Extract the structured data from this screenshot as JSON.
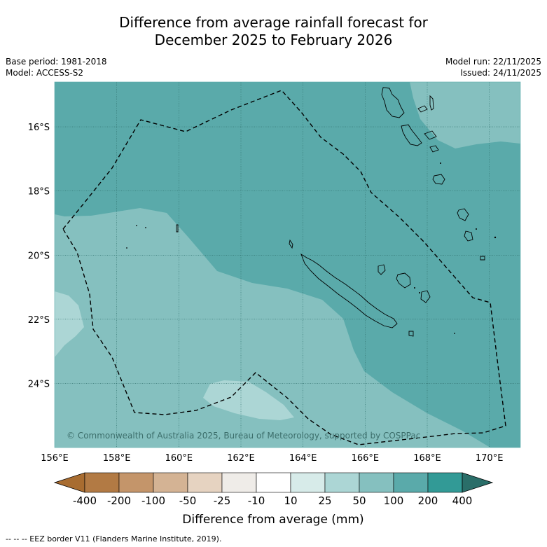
{
  "title_line1": "Difference from average rainfall forecast for",
  "title_line2": "December 2025 to February 2026",
  "meta_left": [
    "Base period: 1981-2018",
    "Model: ACCESS-S2"
  ],
  "meta_right": [
    "Model run: 22/11/2025",
    "Issued: 24/11/2025"
  ],
  "map": {
    "lon_range": [
      156,
      171
    ],
    "lat_range": [
      -26.0,
      -14.6
    ],
    "lon_ticks": [
      "156°E",
      "158°E",
      "160°E",
      "162°E",
      "164°E",
      "166°E",
      "168°E",
      "170°E"
    ],
    "lat_ticks": [
      "16°S",
      "18°S",
      "20°S",
      "22°S",
      "24°S"
    ],
    "copyright": "© Commonwealth of Australia 2025, Bureau of Meteorology, supported by COSPPac"
  },
  "colorbar": {
    "labels": [
      "-400",
      "-200",
      "-100",
      "-50",
      "-25",
      "-10",
      "10",
      "25",
      "50",
      "100",
      "200",
      "400"
    ],
    "colors": [
      "#a86c30",
      "#b27a44",
      "#c4956a",
      "#d4b394",
      "#e6d3c1",
      "#efece8",
      "#ffffff",
      "#d7ebe9",
      "#acd6d5",
      "#85c0bf",
      "#5aaaaa",
      "#329a96",
      "#2a6e69"
    ],
    "title": "Difference from average (mm)"
  },
  "colors": {
    "fill_10_25": "#d7ebe9",
    "fill_25_50": "#acd6d5",
    "fill_50_100": "#85c0bf",
    "fill_100_200": "#5aaaaa"
  },
  "footer": "-- -- -- EEZ border V11 (Flanders Marine Institute, 2019)."
}
